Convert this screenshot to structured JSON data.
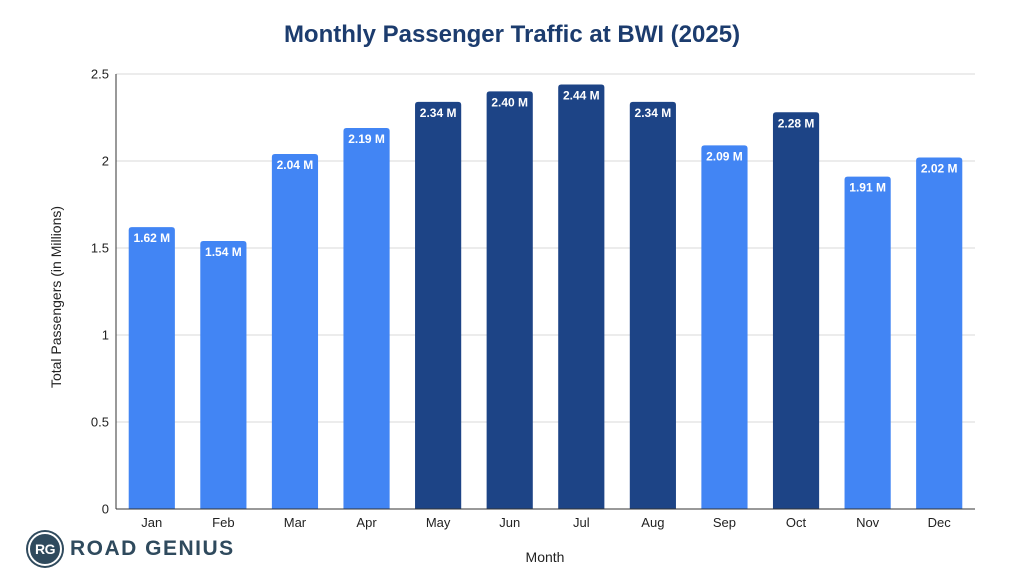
{
  "chart_data": {
    "type": "bar",
    "title": "Monthly Passenger Traffic at BWI (2025)",
    "xlabel": "Month",
    "ylabel": "Total Passengers (in Millions)",
    "categories": [
      "Jan",
      "Feb",
      "Mar",
      "Apr",
      "May",
      "Jun",
      "Jul",
      "Aug",
      "Sep",
      "Oct",
      "Nov",
      "Dec"
    ],
    "values": [
      1.62,
      1.54,
      2.04,
      2.19,
      2.34,
      2.4,
      2.44,
      2.34,
      2.09,
      2.28,
      1.91,
      2.02
    ],
    "data_labels": [
      "1.62 M",
      "1.54 M",
      "2.04 M",
      "2.19 M",
      "2.34 M",
      "2.40 M",
      "2.44 M",
      "2.34 M",
      "2.09 M",
      "2.28 M",
      "1.91 M",
      "2.02 M"
    ],
    "highlighted": [
      false,
      false,
      false,
      false,
      true,
      true,
      true,
      true,
      false,
      true,
      false,
      false
    ],
    "ylim": [
      0,
      2.5
    ],
    "yticks": [
      0,
      0.5,
      1,
      1.5,
      2,
      2.5
    ],
    "ytick_labels": [
      "0",
      "0.5",
      "1",
      "1.5",
      "2",
      "2.5"
    ],
    "grid": true,
    "legend": "none",
    "colors": {
      "bar": "#4285f4",
      "bar_highlight": "#1d4486",
      "title": "#1c3c6e"
    }
  },
  "brand": {
    "badge": "RG",
    "name": "ROAD GENIUS"
  }
}
